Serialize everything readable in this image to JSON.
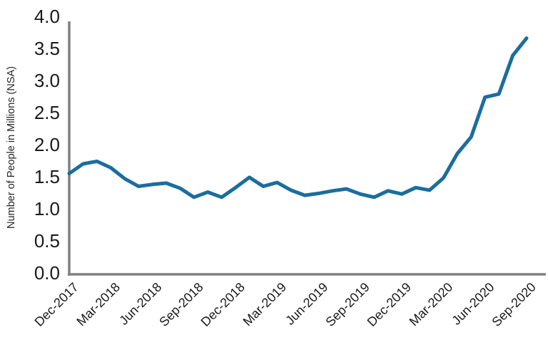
{
  "chart_data": {
    "type": "line",
    "title": "",
    "xlabel": "",
    "ylabel": "Number of People in Millions (NSA)",
    "x": [
      "Dec-2017",
      "Jan-2018",
      "Feb-2018",
      "Mar-2018",
      "Apr-2018",
      "May-2018",
      "Jun-2018",
      "Jul-2018",
      "Aug-2018",
      "Sep-2018",
      "Oct-2018",
      "Nov-2018",
      "Dec-2018",
      "Jan-2019",
      "Feb-2019",
      "Mar-2019",
      "Apr-2019",
      "May-2019",
      "Jun-2019",
      "Jul-2019",
      "Aug-2019",
      "Sep-2019",
      "Oct-2019",
      "Nov-2019",
      "Dec-2019",
      "Jan-2020",
      "Feb-2020",
      "Mar-2020",
      "Apr-2020",
      "May-2020",
      "Jun-2020",
      "Jul-2020",
      "Aug-2020",
      "Sep-2020"
    ],
    "values": [
      1.55,
      1.7,
      1.74,
      1.64,
      1.47,
      1.35,
      1.38,
      1.4,
      1.32,
      1.18,
      1.26,
      1.18,
      1.33,
      1.49,
      1.35,
      1.41,
      1.29,
      1.21,
      1.24,
      1.28,
      1.31,
      1.23,
      1.18,
      1.28,
      1.23,
      1.33,
      1.29,
      1.48,
      1.86,
      2.12,
      2.74,
      2.79,
      3.39,
      3.66
    ],
    "x_tick_labels": [
      "Dec-2017",
      "Mar-2018",
      "Jun-2018",
      "Sep-2018",
      "Dec-2018",
      "Mar-2019",
      "Jun-2019",
      "Sep-2019",
      "Dec-2019",
      "Mar-2020",
      "Jun-2020",
      "Sep-2020"
    ],
    "x_tick_every_n_points": 3,
    "ytick_labels": [
      "0.0",
      "0.5",
      "1.0",
      "1.5",
      "2.0",
      "2.5",
      "3.0",
      "3.5",
      "4.0"
    ],
    "ylim": [
      0.0,
      4.0
    ],
    "ytick_step": 0.5,
    "grid": "off",
    "legend": "none",
    "colors": {
      "line": "#1b6d9e",
      "axis": "#808080",
      "tick_text": "#1a1a1a",
      "axis_title_text": "#262626"
    }
  }
}
